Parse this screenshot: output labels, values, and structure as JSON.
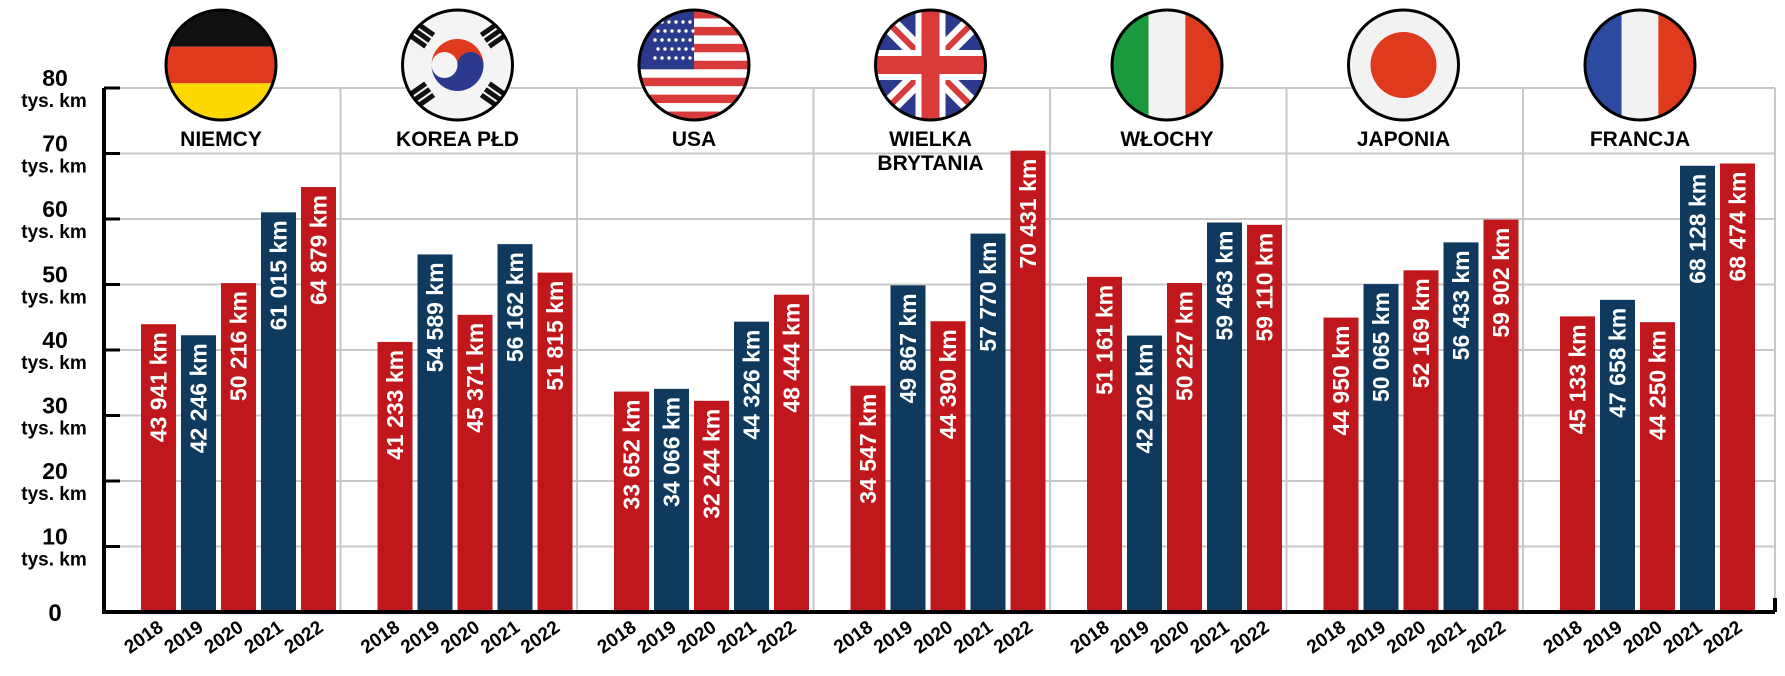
{
  "chart_data": {
    "type": "bar",
    "ylim": [
      0,
      80
    ],
    "y_ticks": [
      {
        "value": 0,
        "lines": [
          "0"
        ]
      },
      {
        "value": 10,
        "lines": [
          "10",
          "tys. km"
        ]
      },
      {
        "value": 20,
        "lines": [
          "20",
          "tys. km"
        ]
      },
      {
        "value": 30,
        "lines": [
          "30",
          "tys. km"
        ]
      },
      {
        "value": 40,
        "lines": [
          "40",
          "tys. km"
        ]
      },
      {
        "value": 50,
        "lines": [
          "50",
          "tys. km"
        ]
      },
      {
        "value": 60,
        "lines": [
          "60",
          "tys. km"
        ]
      },
      {
        "value": 70,
        "lines": [
          "70",
          "tys. km"
        ]
      },
      {
        "value": 80,
        "lines": [
          "80",
          "tys. km"
        ]
      }
    ],
    "years": [
      "2018",
      "2019",
      "2020",
      "2021",
      "2022"
    ],
    "grid": true,
    "colors": {
      "odd_years": "#c0171d",
      "even_years": "#0f3a5e",
      "grid": "#c8c8c8",
      "axis": "#000000"
    },
    "groups": [
      {
        "name_lines": [
          "NIEMCY"
        ],
        "flag": "germany-flag-icon",
        "values": [
          43941,
          42246,
          50216,
          61015,
          64879
        ],
        "labels": [
          "43 941 km",
          "42 246 km",
          "50 216 km",
          "61 015 km",
          "64 879 km"
        ]
      },
      {
        "name_lines": [
          "KOREA PŁD"
        ],
        "flag": "south-korea-flag-icon",
        "values": [
          41233,
          54589,
          45371,
          56162,
          51815
        ],
        "labels": [
          "41 233 km",
          "54 589 km",
          "45 371 km",
          "56 162 km",
          "51 815 km"
        ]
      },
      {
        "name_lines": [
          "USA"
        ],
        "flag": "usa-flag-icon",
        "values": [
          33652,
          34066,
          32244,
          44326,
          48444
        ],
        "labels": [
          "33 652 km",
          "34 066 km",
          "32 244 km",
          "44 326 km",
          "48 444 km"
        ]
      },
      {
        "name_lines": [
          "WIELKA",
          "BRYTANIA"
        ],
        "flag": "uk-flag-icon",
        "values": [
          34547,
          49867,
          44390,
          57770,
          70431
        ],
        "labels": [
          "34 547 km",
          "49 867 km",
          "44 390 km",
          "57 770 km",
          "70 431 km"
        ]
      },
      {
        "name_lines": [
          "WŁOCHY"
        ],
        "flag": "italy-flag-icon",
        "values": [
          51161,
          42202,
          50227,
          59463,
          59110
        ],
        "labels": [
          "51 161 km",
          "42 202 km",
          "50 227 km",
          "59 463 km",
          "59 110 km"
        ]
      },
      {
        "name_lines": [
          "JAPONIA"
        ],
        "flag": "japan-flag-icon",
        "values": [
          44950,
          50065,
          52169,
          56433,
          59902
        ],
        "labels": [
          "44 950 km",
          "50 065 km",
          "52 169 km",
          "56 433 km",
          "59 902 km"
        ]
      },
      {
        "name_lines": [
          "FRANCJA"
        ],
        "flag": "france-flag-icon",
        "values": [
          45133,
          47658,
          44250,
          68128,
          68474
        ],
        "labels": [
          "45 133 km",
          "47 658 km",
          "44 250 km",
          "68 128 km",
          "68 474 km"
        ]
      }
    ]
  }
}
